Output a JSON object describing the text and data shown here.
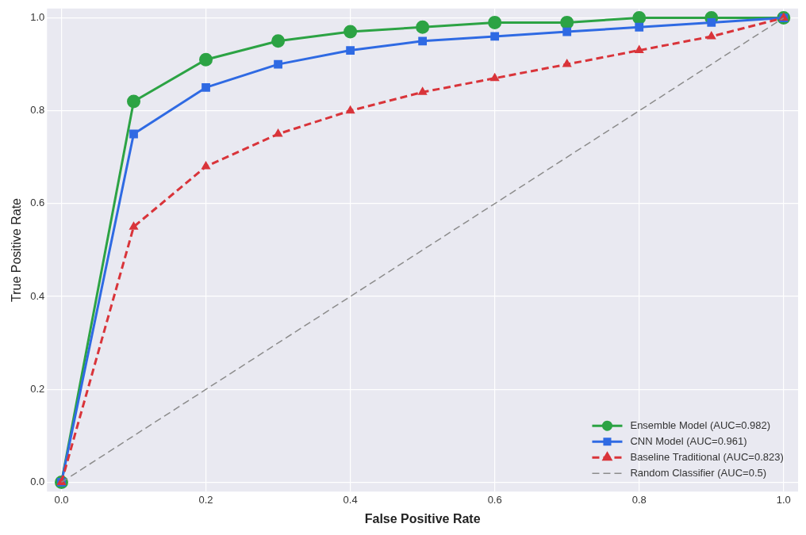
{
  "chart_data": {
    "type": "line",
    "xlabel": "False Positive Rate",
    "ylabel": "True Positive Rate",
    "x": [
      0,
      0.1,
      0.2,
      0.3,
      0.4,
      0.5,
      0.6,
      0.7,
      0.8,
      0.9,
      1.0
    ],
    "series": [
      {
        "name": "Ensemble Model (AUC=0.982)",
        "color": "#2ca344",
        "marker": "circle",
        "line_style": "solid",
        "values": [
          0,
          0.82,
          0.91,
          0.95,
          0.97,
          0.98,
          0.99,
          0.99,
          1.0,
          1.0,
          1.0
        ]
      },
      {
        "name": "CNN Model (AUC=0.961)",
        "color": "#2f6ae3",
        "marker": "square",
        "line_style": "solid",
        "values": [
          0,
          0.75,
          0.85,
          0.9,
          0.93,
          0.95,
          0.96,
          0.97,
          0.98,
          0.99,
          1.0
        ]
      },
      {
        "name": "Baseline Traditional (AUC=0.823)",
        "color": "#d9343a",
        "marker": "triangle",
        "line_style": "dashed",
        "values": [
          0,
          0.55,
          0.68,
          0.75,
          0.8,
          0.84,
          0.87,
          0.9,
          0.93,
          0.96,
          1.0
        ]
      },
      {
        "name": "Random Classifier (AUC=0.5)",
        "color": "#8c8c8c",
        "marker": "none",
        "line_style": "dashed",
        "x": [
          0,
          1
        ],
        "values": [
          0,
          1
        ]
      }
    ],
    "xlim": [
      -0.02,
      1.02
    ],
    "ylim": [
      -0.02,
      1.02
    ],
    "xticks": [
      {
        "value": 0,
        "label": "0.0"
      },
      {
        "value": 0.2,
        "label": "0.2"
      },
      {
        "value": 0.4,
        "label": "0.4"
      },
      {
        "value": 0.6,
        "label": "0.6"
      },
      {
        "value": 0.8,
        "label": "0.8"
      },
      {
        "value": 1,
        "label": "1.0"
      }
    ],
    "yticks": [
      {
        "value": 0,
        "label": "0.0"
      },
      {
        "value": 0.2,
        "label": "0.2"
      },
      {
        "value": 0.4,
        "label": "0.4"
      },
      {
        "value": 0.6,
        "label": "0.6"
      },
      {
        "value": 0.8,
        "label": "0.8"
      },
      {
        "value": 1,
        "label": "1.0"
      }
    ],
    "grid": true,
    "legend": "bottom right"
  }
}
